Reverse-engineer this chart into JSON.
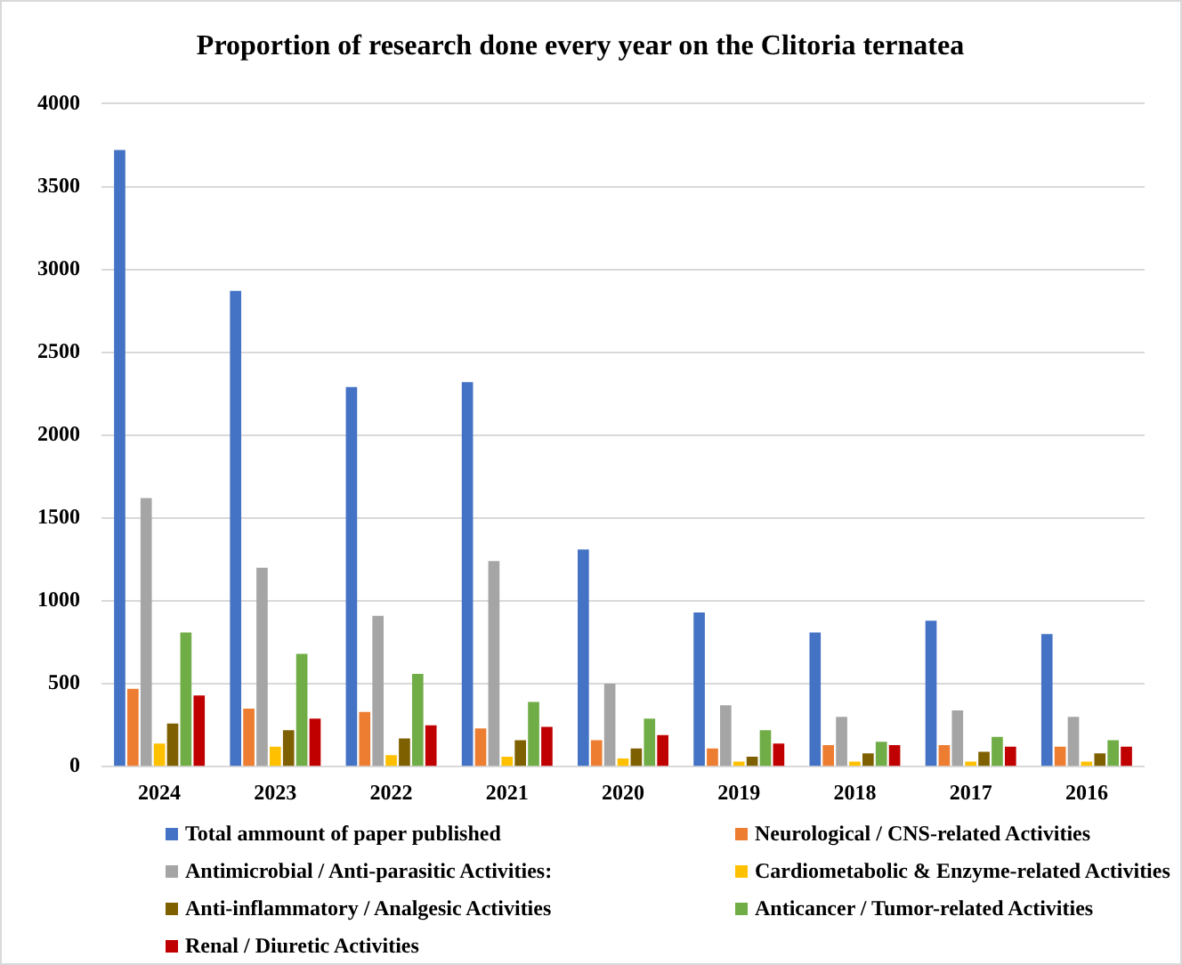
{
  "chart_data": {
    "type": "bar",
    "title": "Proportion of research done every year on the Clitoria ternatea",
    "categories": [
      "2024",
      "2023",
      "2022",
      "2021",
      "2020",
      "2019",
      "2018",
      "2017",
      "2016"
    ],
    "series": [
      {
        "name": "Total ammount of paper published",
        "color": "#4472c4",
        "values": [
          3720,
          2870,
          2290,
          2320,
          1310,
          930,
          810,
          880,
          800
        ]
      },
      {
        "name": "Neurological / CNS-related Activities",
        "color": "#ed7d31",
        "values": [
          470,
          350,
          330,
          230,
          160,
          110,
          130,
          130,
          120
        ]
      },
      {
        "name": "Antimicrobial / Anti-parasitic Activities:",
        "color": "#a5a5a5",
        "values": [
          1620,
          1200,
          910,
          1240,
          500,
          370,
          300,
          340,
          300
        ]
      },
      {
        "name": "Cardiometabolic & Enzyme-related Activities",
        "color": "#ffc000",
        "values": [
          140,
          120,
          70,
          60,
          50,
          30,
          30,
          30,
          30
        ]
      },
      {
        "name": "Anti-inflammatory / Analgesic Activities",
        "color": "#7f6000",
        "values": [
          260,
          220,
          170,
          160,
          110,
          60,
          80,
          90,
          80
        ]
      },
      {
        "name": "Anticancer / Tumor-related Activities",
        "color": "#70ad47",
        "values": [
          810,
          680,
          560,
          390,
          290,
          220,
          150,
          180,
          160
        ]
      },
      {
        "name": "Renal / Diuretic Activities",
        "color": "#c00000",
        "values": [
          430,
          290,
          250,
          240,
          190,
          140,
          130,
          120,
          120
        ]
      }
    ],
    "ylim": [
      0,
      4000
    ],
    "yticks": [
      0,
      500,
      1000,
      1500,
      2000,
      2500,
      3000,
      3500,
      4000
    ],
    "grid": "y",
    "legend": "bottom"
  }
}
